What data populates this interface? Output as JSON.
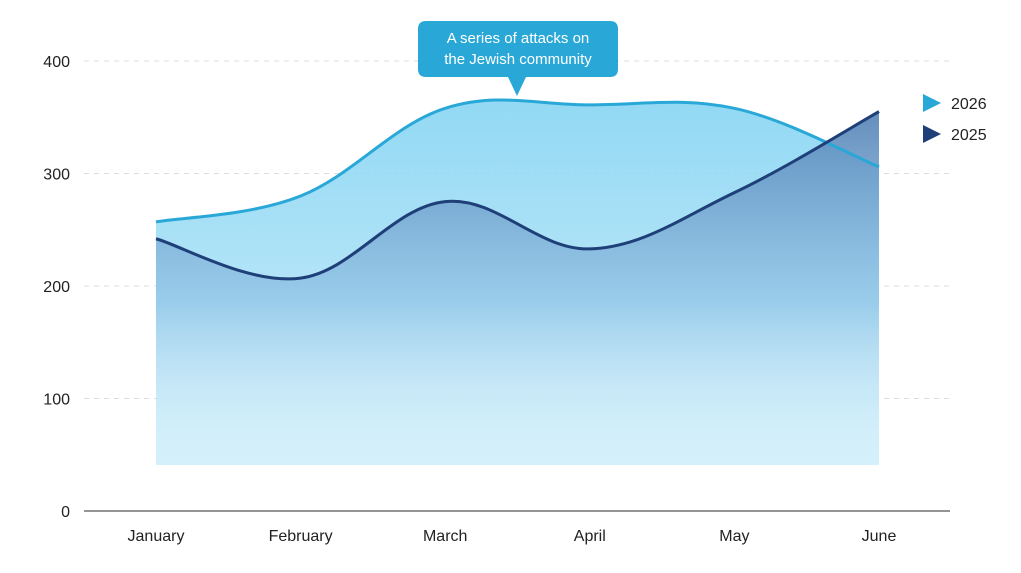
{
  "chart_data": {
    "type": "area",
    "categories": [
      "January",
      "February",
      "March",
      "April",
      "May",
      "June"
    ],
    "series": [
      {
        "name": "2026",
        "values": [
          257,
          280,
          358,
          361,
          358,
          306
        ],
        "color": "#29a8d8"
      },
      {
        "name": "2025",
        "values": [
          242,
          207,
          275,
          233,
          283,
          355
        ],
        "color": "#1f3f78"
      }
    ],
    "ylim": [
      0,
      400
    ],
    "yticks": [
      0,
      100,
      200,
      300,
      400
    ],
    "grid": true,
    "legend": "right",
    "annotation": {
      "lines": [
        "A series of attacks on",
        "the Jewish community"
      ],
      "category": "March",
      "color": "#29a8d8"
    }
  }
}
